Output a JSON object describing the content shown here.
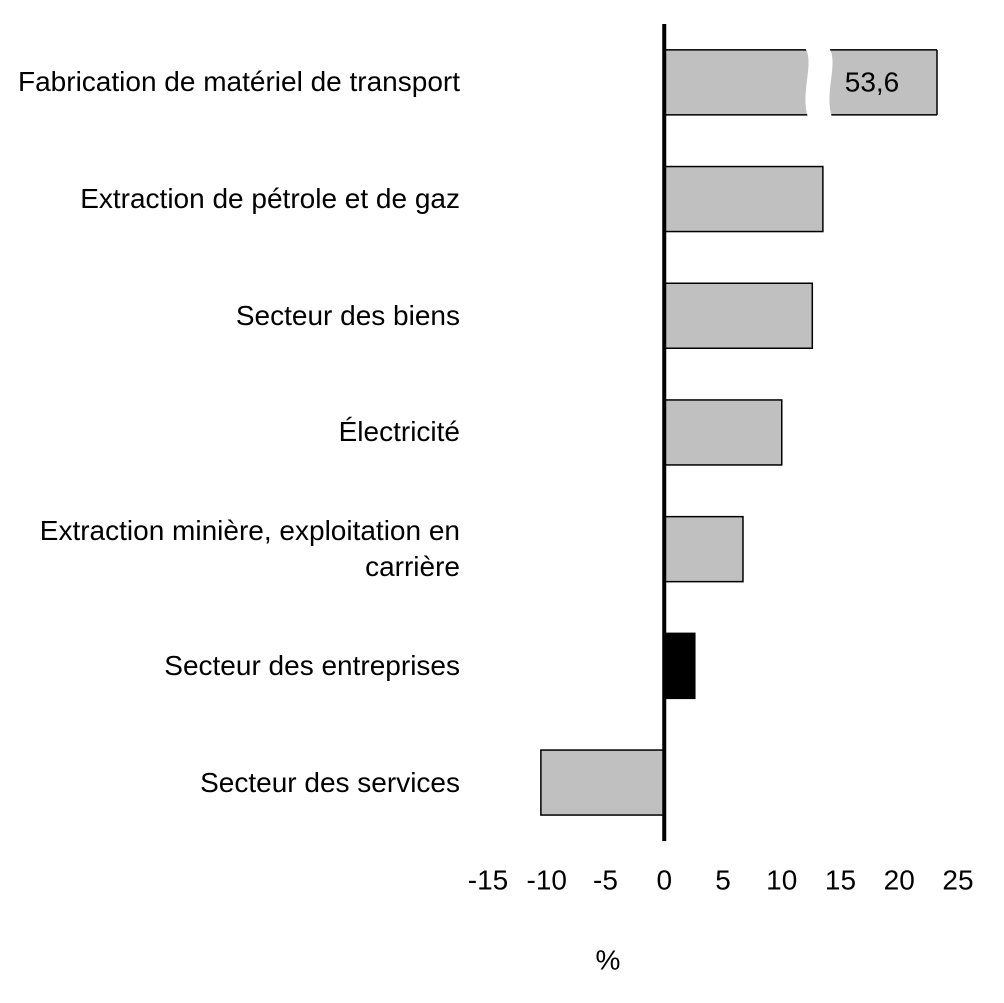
{
  "chart_data": {
    "type": "hbar",
    "categories": [
      "Fabrication de matériel de transport",
      "Extraction de pétrole et de gaz",
      "Secteur des biens",
      "Électricité",
      "Extraction minière, exploitation en carrière",
      "Secteur des entreprises",
      "Secteur des services"
    ],
    "values": [
      53.6,
      13.5,
      12.6,
      10.0,
      6.7,
      2.6,
      -10.5
    ],
    "value_labels": [
      "53,6",
      null,
      null,
      null,
      null,
      null,
      null
    ],
    "colors": [
      "#c0c0c0",
      "#c0c0c0",
      "#c0c0c0",
      "#c0c0c0",
      "#c0c0c0",
      "#000000",
      "#c0c0c0"
    ],
    "xlim": [
      -15,
      25
    ],
    "xticks": [
      -15,
      -10,
      -5,
      0,
      5,
      10,
      15,
      20,
      25
    ],
    "xlabel": "%"
  }
}
